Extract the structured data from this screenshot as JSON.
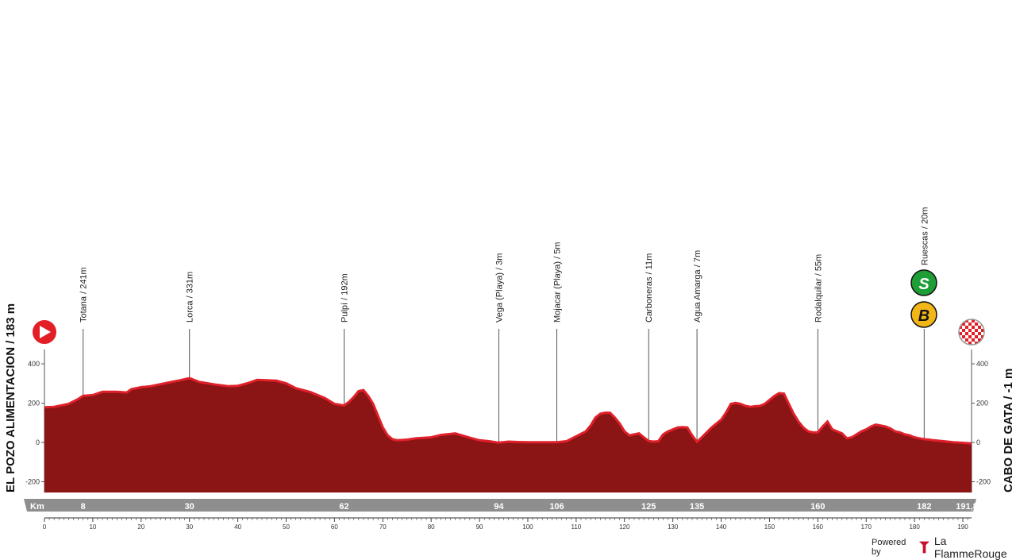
{
  "chart_data": {
    "type": "area",
    "start_label": "EL POZO ALIMENTACION / 183 m",
    "finish_label": "CABO DE GATA / -1 m",
    "x_axis_label": "Km",
    "km_markers": [
      "8",
      "30",
      "62",
      "94",
      "106",
      "125",
      "135",
      "160",
      "182",
      "191,8"
    ],
    "xlim": [
      0,
      191.8
    ],
    "ylim": [
      -250,
      400
    ],
    "y_ticks": [
      "400",
      "200",
      "0",
      "-200"
    ],
    "x_ticks": [
      "0",
      "10",
      "20",
      "30",
      "40",
      "50",
      "60",
      "70",
      "80",
      "90",
      "100",
      "110",
      "120",
      "130",
      "140",
      "150",
      "160",
      "170",
      "180",
      "190"
    ],
    "x": [
      0,
      2,
      5,
      7,
      8,
      10,
      12,
      15,
      17,
      18,
      20,
      22,
      25,
      27,
      28,
      30,
      32,
      35,
      38,
      40,
      42,
      44,
      46,
      48,
      50,
      52,
      55,
      58,
      60,
      62,
      63,
      64,
      65,
      66,
      67,
      68,
      69,
      70,
      71,
      72,
      73,
      75,
      77,
      80,
      82,
      85,
      88,
      90,
      92,
      94,
      96,
      98,
      100,
      102,
      104,
      106,
      108,
      110,
      112,
      113,
      114,
      115,
      116,
      117,
      118,
      119,
      120,
      121,
      122,
      123,
      124,
      125,
      126,
      127,
      128,
      129,
      130,
      131,
      132,
      133,
      134,
      135,
      136,
      137,
      138,
      139,
      140,
      141,
      142,
      143,
      144,
      145,
      146,
      147,
      148,
      149,
      150,
      151,
      152,
      153,
      154,
      155,
      156,
      157,
      158,
      159,
      160,
      161,
      162,
      163,
      164,
      165,
      166,
      167,
      168,
      169,
      170,
      171,
      172,
      173,
      174,
      175,
      176,
      177,
      178,
      179,
      180,
      181,
      182,
      183,
      184,
      186,
      188,
      190,
      191.8
    ],
    "values": [
      183,
      185,
      200,
      225,
      241,
      245,
      262,
      262,
      258,
      275,
      285,
      290,
      305,
      315,
      320,
      331,
      312,
      300,
      290,
      292,
      305,
      322,
      320,
      318,
      305,
      280,
      260,
      230,
      200,
      192,
      210,
      235,
      265,
      270,
      240,
      200,
      140,
      80,
      40,
      20,
      15,
      18,
      25,
      30,
      42,
      50,
      28,
      15,
      10,
      3,
      8,
      6,
      5,
      5,
      5,
      5,
      10,
      35,
      60,
      90,
      130,
      150,
      155,
      155,
      130,
      100,
      60,
      40,
      45,
      50,
      30,
      11,
      8,
      10,
      45,
      60,
      70,
      80,
      82,
      80,
      40,
      7,
      30,
      55,
      80,
      100,
      120,
      155,
      200,
      205,
      200,
      190,
      185,
      188,
      190,
      200,
      220,
      240,
      255,
      252,
      200,
      150,
      110,
      80,
      60,
      55,
      55,
      85,
      110,
      70,
      60,
      50,
      25,
      30,
      45,
      60,
      70,
      85,
      95,
      90,
      85,
      75,
      60,
      55,
      45,
      40,
      30,
      25,
      20,
      18,
      15,
      10,
      5,
      2,
      -1
    ],
    "pois": [
      {
        "km": 8,
        "label": "Totana / 241m"
      },
      {
        "km": 30,
        "label": "Lorca / 331m"
      },
      {
        "km": 62,
        "label": "Pulpí / 192m"
      },
      {
        "km": 94,
        "label": "Vega (Playa) / 3m"
      },
      {
        "km": 106,
        "label": "Mojacar (Playa) / 5m"
      },
      {
        "km": 125,
        "label": "Carboneras / 11m"
      },
      {
        "km": 135,
        "label": "Agua Amarga / 7m"
      },
      {
        "km": 160,
        "label": "Rodalquilar / 55m"
      },
      {
        "km": 182,
        "label": "Ruescas / 20m"
      }
    ],
    "sprint_badge": "S",
    "bonus_badge": "B",
    "colors": {
      "fill": "#8b1414",
      "ridge": "#e0202a",
      "km_bar": "#8e8e8e",
      "sprint": "#1e9e36",
      "bonus": "#f2b716",
      "start": "#e21f26"
    }
  },
  "brand": {
    "powered_by": "Powered by",
    "name": "La FlammeRouge"
  }
}
